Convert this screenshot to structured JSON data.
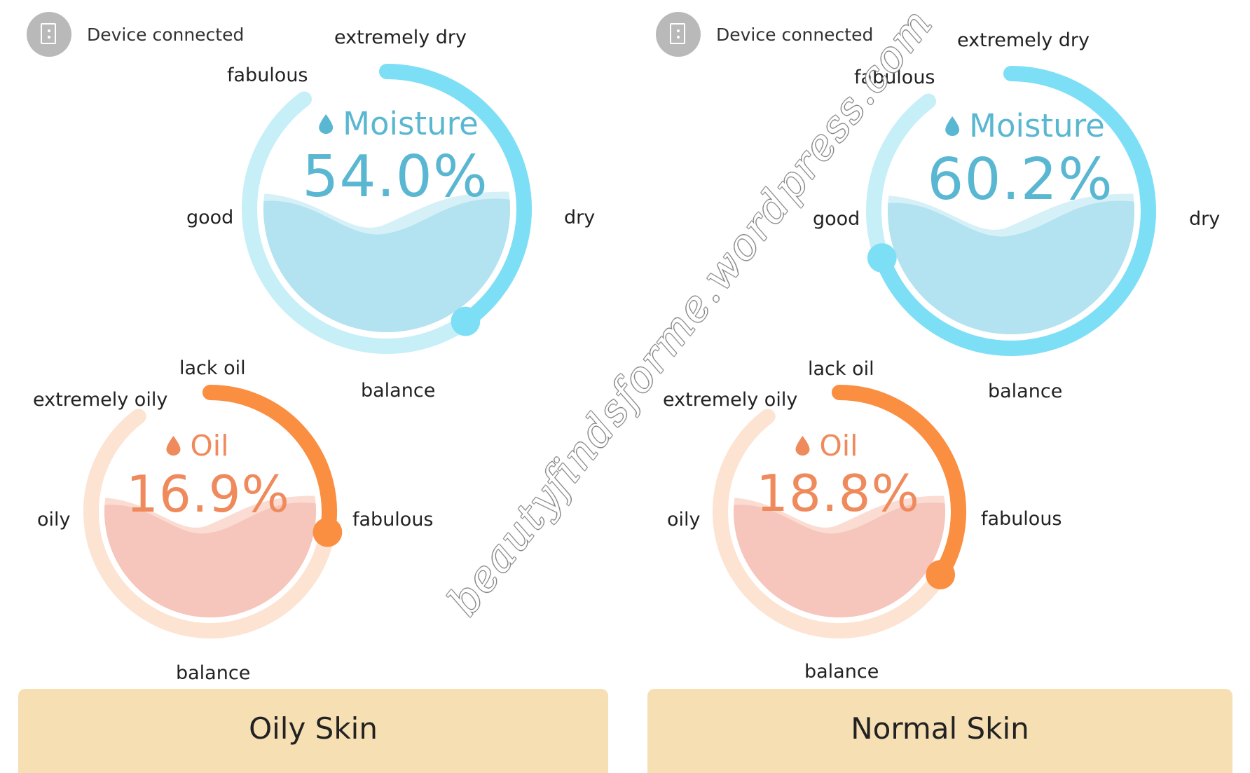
{
  "colors": {
    "moisture_track": "#c6eff8",
    "moisture_arc": "#7ddff6",
    "moisture_water": "#b3e2f0",
    "moisture_water_back": "#d6f0f7",
    "moisture_text": "#5ab7d2",
    "oil_track": "#fde3d2",
    "oil_arc": "#fa8e41",
    "oil_water": "#f6c5bb",
    "oil_water_back": "#fbdcd2",
    "oil_text": "#ef8a5c",
    "skin_card": "#f7dfb4"
  },
  "icons": {
    "device": "device-icon",
    "moisture": "water-drop-icon",
    "oil": "oil-drop-icon"
  },
  "watermark": "beautyfindsforme.wordpress.com",
  "panels": [
    {
      "device_status": "Device connected",
      "moisture": {
        "title": "Moisture",
        "value_text": "54.0%",
        "labels": {
          "extremely_dry": "extremely dry",
          "fabulous": "fabulous",
          "good": "good",
          "dry": "dry",
          "balance": "balance"
        },
        "arc_end_angle_deg": 145
      },
      "oil": {
        "title": "Oil",
        "value_text": "16.9%",
        "labels": {
          "lack_oil": "lack oil",
          "extremely_oily": "extremely oily",
          "oily": "oily",
          "fabulous": "fabulous",
          "balance": "balance"
        },
        "arc_end_angle_deg": 100
      },
      "skin_type": "Oily Skin"
    },
    {
      "device_status": "Device connected",
      "moisture": {
        "title": "Moisture",
        "value_text": "60.2%",
        "labels": {
          "extremely_dry": "extremely dry",
          "fabulous": "fabulous",
          "good": "good",
          "dry": "dry",
          "balance": "balance"
        },
        "arc_end_angle_deg": 250
      },
      "oil": {
        "title": "Oil",
        "value_text": "18.8%",
        "labels": {
          "lack_oil": "lack oil",
          "extremely_oily": "extremely oily",
          "oily": "oily",
          "fabulous": "fabulous",
          "balance": "balance"
        },
        "arc_end_angle_deg": 122
      },
      "skin_type": "Normal Skin"
    }
  ]
}
